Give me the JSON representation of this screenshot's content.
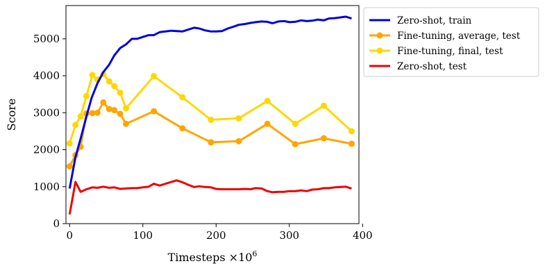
{
  "chart_data": {
    "type": "line",
    "xlabel": "Timesteps ×10",
    "xlabel_sup": "6",
    "ylabel": "Score",
    "xlim": [
      -5,
      395
    ],
    "ylim": [
      0,
      5900
    ],
    "xticks": [
      0,
      100,
      200,
      300,
      400
    ],
    "yticks": [
      0,
      1000,
      2000,
      3000,
      4000,
      5000
    ],
    "legend_position": "outside-top-right",
    "series": [
      {
        "name": "Zero-shot, train",
        "color": "#0000dd",
        "markers": false,
        "x": [
          0,
          8,
          15,
          23,
          30,
          38,
          46,
          54,
          61,
          69,
          77,
          85,
          92,
          100,
          108,
          115,
          123,
          131,
          139,
          146,
          154,
          162,
          170,
          177,
          185,
          193,
          200,
          208,
          216,
          224,
          231,
          239,
          247,
          254,
          262,
          270,
          277,
          285,
          293,
          300,
          308,
          316,
          324,
          331,
          339,
          347,
          354,
          362,
          370,
          377,
          385
        ],
        "y": [
          950,
          1800,
          2300,
          2900,
          3400,
          3800,
          4100,
          4300,
          4550,
          4750,
          4850,
          5000,
          5000,
          5050,
          5100,
          5100,
          5180,
          5200,
          5220,
          5210,
          5200,
          5250,
          5300,
          5280,
          5230,
          5200,
          5200,
          5210,
          5280,
          5330,
          5380,
          5400,
          5430,
          5450,
          5470,
          5460,
          5420,
          5470,
          5480,
          5450,
          5460,
          5500,
          5480,
          5490,
          5520,
          5500,
          5550,
          5560,
          5580,
          5600,
          5550
        ]
      },
      {
        "name": "Fine-tuning, average, test",
        "color": "#ffa500",
        "markers": true,
        "x": [
          0,
          8,
          15,
          23,
          31,
          38,
          46,
          54,
          61,
          69,
          77,
          115,
          154,
          193,
          231,
          270,
          308,
          347,
          385
        ],
        "y": [
          1550,
          1850,
          2080,
          2980,
          2990,
          3000,
          3280,
          3100,
          3070,
          2970,
          2700,
          3040,
          2580,
          2200,
          2230,
          2700,
          2150,
          2310,
          2160
        ]
      },
      {
        "name": "Fine-tuning, final, test",
        "color": "#ffd700",
        "markers": true,
        "x": [
          0,
          8,
          15,
          23,
          31,
          38,
          46,
          54,
          61,
          69,
          77,
          115,
          154,
          193,
          231,
          270,
          308,
          347,
          385
        ],
        "y": [
          2170,
          2670,
          2900,
          3450,
          4020,
          3900,
          4040,
          3850,
          3720,
          3540,
          3120,
          3990,
          3420,
          2810,
          2850,
          3320,
          2700,
          3190,
          2500
        ]
      },
      {
        "name": "Zero-shot, test",
        "color": "#ee0000",
        "markers": false,
        "x": [
          0,
          8,
          15,
          23,
          31,
          38,
          46,
          54,
          61,
          69,
          77,
          85,
          92,
          100,
          108,
          115,
          123,
          131,
          139,
          146,
          154,
          162,
          170,
          177,
          185,
          193,
          200,
          208,
          216,
          224,
          231,
          239,
          247,
          254,
          262,
          270,
          277,
          285,
          293,
          300,
          308,
          316,
          324,
          331,
          339,
          347,
          354,
          362,
          370,
          377,
          385
        ],
        "y": [
          250,
          1130,
          860,
          930,
          980,
          970,
          1000,
          970,
          980,
          940,
          950,
          960,
          960,
          980,
          1000,
          1080,
          1030,
          1080,
          1130,
          1170,
          1120,
          1050,
          990,
          1010,
          990,
          980,
          940,
          930,
          930,
          930,
          930,
          940,
          930,
          960,
          950,
          880,
          850,
          860,
          860,
          880,
          880,
          900,
          880,
          920,
          930,
          960,
          960,
          980,
          990,
          1000,
          950
        ]
      }
    ]
  }
}
